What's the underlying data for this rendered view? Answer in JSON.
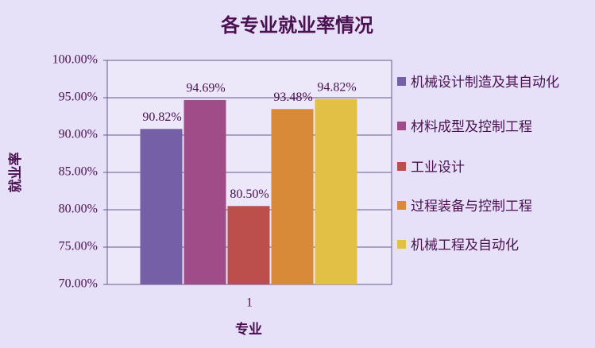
{
  "chart_data": {
    "type": "bar",
    "title": "各专业就业率情况",
    "x_label": "专业",
    "y_label": "就业率",
    "categories": [
      "1"
    ],
    "series": [
      {
        "name": "机械设计制造及其自动化",
        "color": "#7560a8",
        "values": [
          90.82
        ],
        "value_labels": [
          "90.82%"
        ]
      },
      {
        "name": "材料成型及控制工程",
        "color": "#a04c88",
        "values": [
          94.69
        ],
        "value_labels": [
          "94.69%"
        ]
      },
      {
        "name": "工业设计",
        "color": "#bc4e4c",
        "values": [
          80.5
        ],
        "value_labels": [
          "80.50%"
        ]
      },
      {
        "name": "过程装备与控制工程",
        "color": "#d98a38",
        "values": [
          93.48
        ],
        "value_labels": [
          "93.48%"
        ]
      },
      {
        "name": "机械工程及自动化",
        "color": "#e2c044",
        "values": [
          94.82
        ],
        "value_labels": [
          "94.82%"
        ]
      }
    ],
    "ylim": [
      70,
      100
    ],
    "yticks": [
      {
        "value": 70,
        "label": "70.00%"
      },
      {
        "value": 75,
        "label": "75.00%"
      },
      {
        "value": 80,
        "label": "80.00%"
      },
      {
        "value": 85,
        "label": "85.00%"
      },
      {
        "value": 90,
        "label": "90.00%"
      },
      {
        "value": 95,
        "label": "95.00%"
      },
      {
        "value": 100,
        "label": "100.00%"
      }
    ],
    "grid": true,
    "legend": "right"
  }
}
